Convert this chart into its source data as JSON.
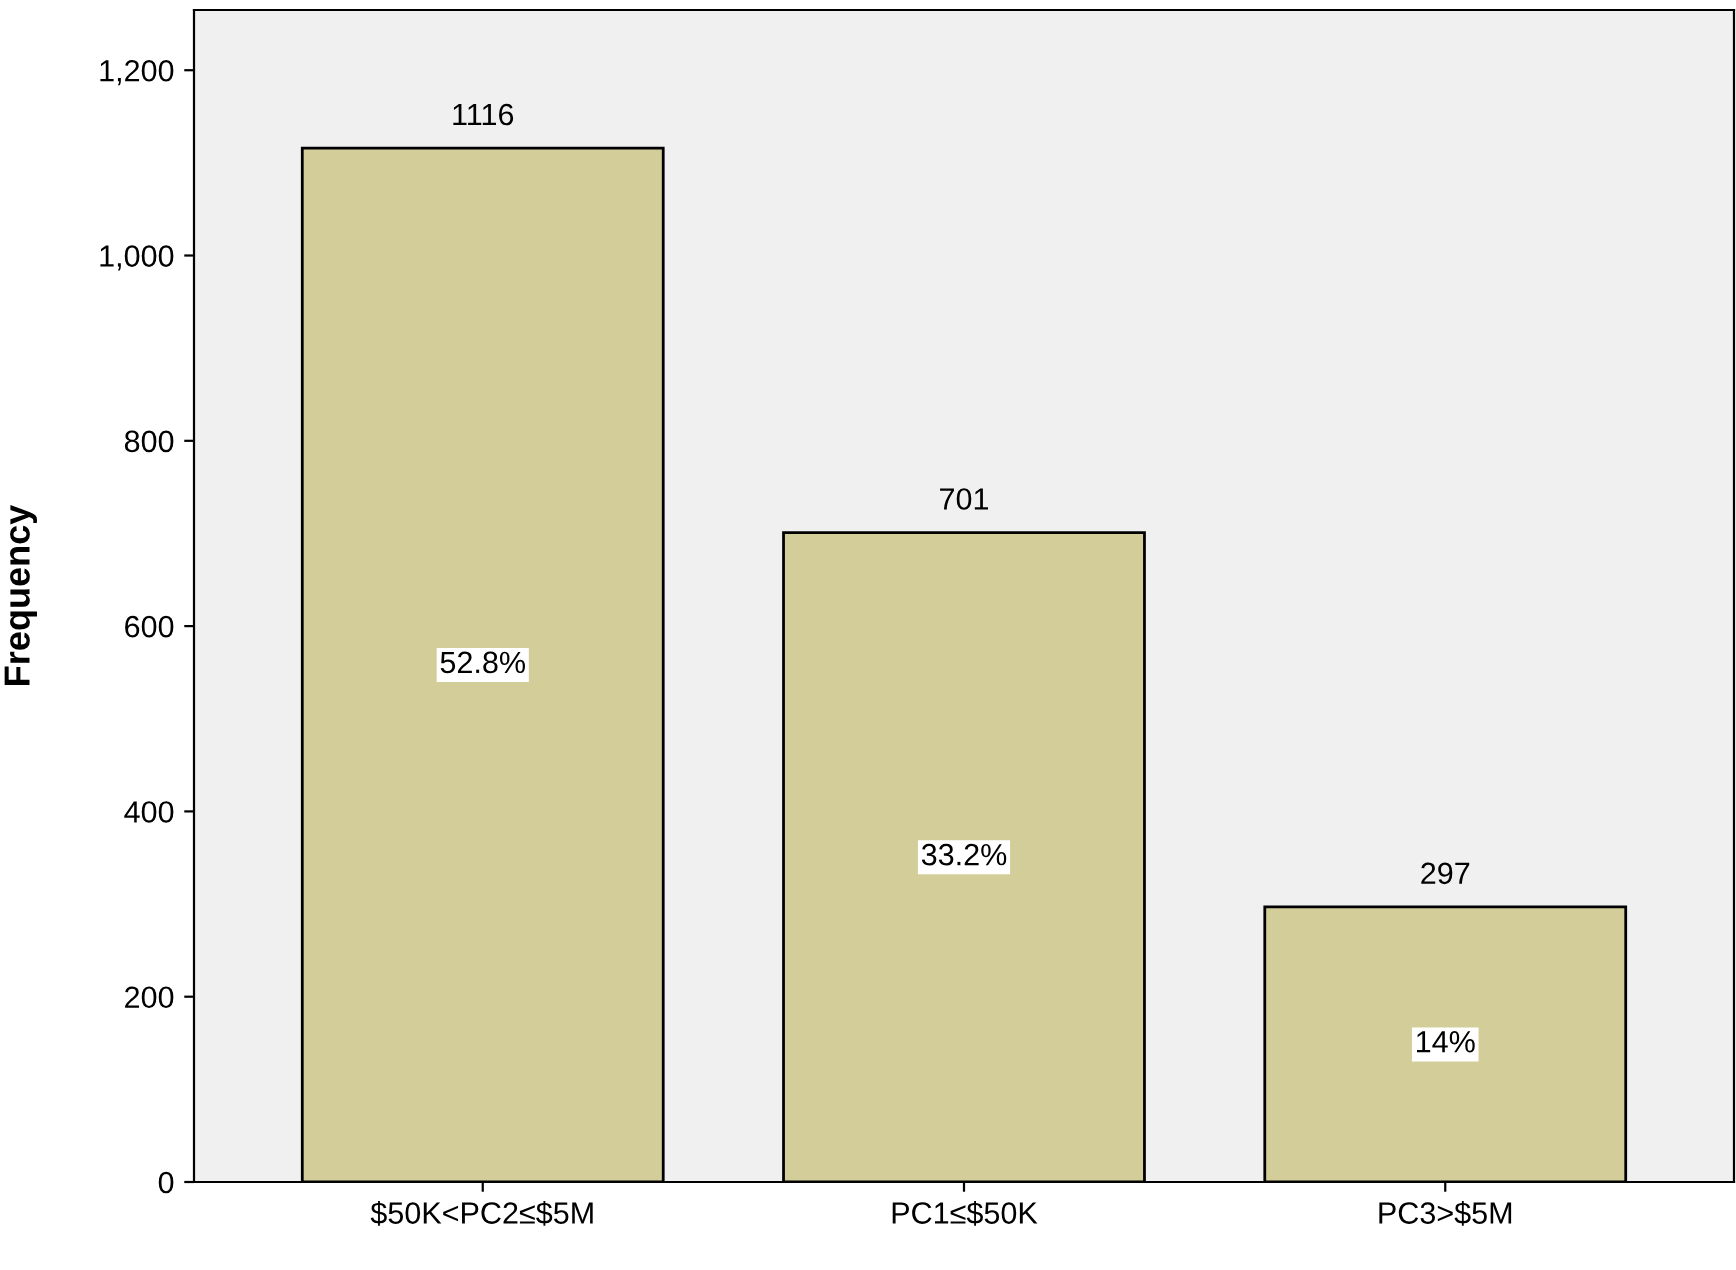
{
  "chart_data": {
    "type": "bar",
    "ylabel": "Frequency",
    "categories": [
      "$50K<PC2≤$5M",
      "PC1≤$50K",
      "PC3>$5M"
    ],
    "values": [
      1116,
      701,
      297
    ],
    "color": "#d3ce99",
    "data_labels": true,
    "annotations": [
      "52.8%",
      "33.2%",
      "14%"
    ],
    "ylim": [
      0,
      1265
    ],
    "yticks": [
      0,
      200,
      400,
      600,
      800,
      {
        "value": 1000,
        "label": "1,000"
      },
      {
        "value": 1200,
        "label": "1,200"
      }
    ],
    "grid": false
  }
}
